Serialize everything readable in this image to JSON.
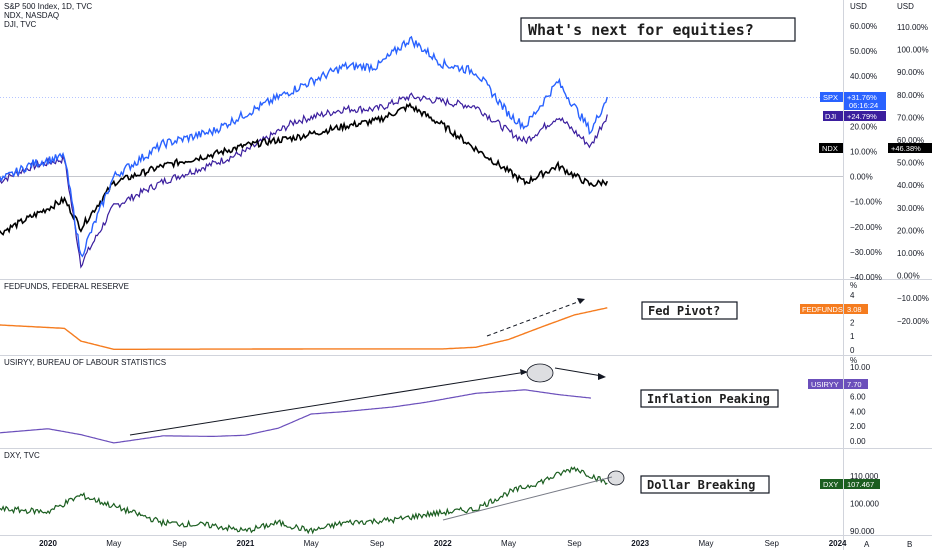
{
  "chart_data": [
    {
      "type": "line",
      "pane": "main",
      "legend": [
        "S&P 500 Index, 1D, TVC",
        "NDX, NASDAQ",
        "DJI, TVC"
      ],
      "currency": "USD",
      "title": "What's next for equities?",
      "ylabel_left": [
        "60.00%",
        "50.00%",
        "40.00%",
        "30.00%",
        "20.00%",
        "10.00%",
        "0.00%",
        "−10.00%",
        "−20.00%",
        "−30.00%",
        "−40.00%"
      ],
      "ylabel_right": [
        "110.00%",
        "100.00%",
        "90.00%",
        "80.00%",
        "70.00%",
        "60.00%",
        "50.00%",
        "40.00%",
        "30.00%",
        "20.00%",
        "10.00%",
        "0.00%",
        "−10.00%",
        "−20.00%"
      ],
      "x_ticks": [
        "2020",
        "May",
        "Sep",
        "2021",
        "May",
        "Sep",
        "2022",
        "May",
        "Sep",
        "2023",
        "May",
        "Sep",
        "2024"
      ],
      "series": [
        {
          "name": "SPX",
          "color": "#2962ff",
          "last_label": "+31.76%",
          "timer": "06:16:24",
          "x": [
            "2019-10",
            "2019-12",
            "2020-02",
            "2020-03",
            "2020-05",
            "2020-08",
            "2020-11",
            "2021-01",
            "2021-04",
            "2021-07",
            "2021-09",
            "2021-11",
            "2022-01",
            "2022-03",
            "2022-05",
            "2022-06",
            "2022-08",
            "2022-10",
            "2022-11"
          ],
          "values": [
            -2,
            5,
            8,
            -32,
            0,
            13,
            18,
            25,
            35,
            44,
            44,
            55,
            45,
            42,
            25,
            20,
            38,
            18,
            31.76
          ]
        },
        {
          "name": "DJI",
          "color": "#3b1e9e",
          "last_label": "+24.79%",
          "x": [
            "2019-10",
            "2019-12",
            "2020-02",
            "2020-03",
            "2020-05",
            "2020-08",
            "2020-11",
            "2021-01",
            "2021-04",
            "2021-07",
            "2021-09",
            "2021-11",
            "2022-01",
            "2022-03",
            "2022-05",
            "2022-06",
            "2022-08",
            "2022-10",
            "2022-11"
          ],
          "values": [
            -2,
            4,
            7,
            -35,
            -12,
            -2,
            5,
            10,
            22,
            27,
            27,
            32,
            30,
            28,
            18,
            14,
            24,
            12,
            24.79
          ]
        },
        {
          "name": "NDX",
          "color": "#000000",
          "last_label": "+46.38%",
          "x": [
            "2019-10",
            "2019-12",
            "2020-02",
            "2020-03",
            "2020-05",
            "2020-08",
            "2020-11",
            "2021-01",
            "2021-04",
            "2021-07",
            "2021-09",
            "2021-11",
            "2022-01",
            "2022-03",
            "2022-05",
            "2022-06",
            "2022-08",
            "2022-10",
            "2022-11"
          ],
          "values": [
            0,
            15,
            30,
            5,
            45,
            60,
            70,
            78,
            85,
            95,
            100,
            113,
            96,
            75,
            55,
            45,
            60,
            43,
            46.38
          ]
        }
      ]
    },
    {
      "type": "line",
      "pane": "fedfunds",
      "legend": "FEDFUNDS, FEDERAL RESERVE",
      "title": "Fed Pivot?",
      "unit": "%",
      "ylim": [
        0,
        4
      ],
      "yticks": [
        "4",
        "3",
        "2",
        "1",
        "0"
      ],
      "series": [
        {
          "name": "FEDFUNDS",
          "color": "#f57c1f",
          "last_label": "3.08",
          "x": [
            "2019-10",
            "2020-02",
            "2020-03",
            "2020-05",
            "2021-06",
            "2022-01",
            "2022-03",
            "2022-05",
            "2022-07",
            "2022-09",
            "2022-11"
          ],
          "values": [
            1.83,
            1.58,
            0.65,
            0.05,
            0.08,
            0.08,
            0.2,
            0.77,
            1.68,
            2.56,
            3.08
          ]
        }
      ]
    },
    {
      "type": "line",
      "pane": "usiryy",
      "legend": "USIRYY, BUREAU OF LABOUR STATISTICS",
      "title": "Inflation Peaking",
      "unit": "%",
      "ylim": [
        0,
        8
      ],
      "yticks": [
        "10.00",
        "8.00",
        "6.00",
        "4.00",
        "2.00",
        "0.00"
      ],
      "series": [
        {
          "name": "USIRYY",
          "color": "#6b4fbb",
          "last_label": "7.70",
          "x": [
            "2019-10",
            "2020-01",
            "2020-03",
            "2020-05",
            "2020-08",
            "2020-11",
            "2021-01",
            "2021-03",
            "2021-05",
            "2021-07",
            "2021-10",
            "2021-12",
            "2022-03",
            "2022-06",
            "2022-08",
            "2022-10"
          ],
          "values": [
            1.8,
            2.5,
            1.5,
            0.1,
            1.3,
            1.2,
            1.4,
            2.6,
            5.0,
            5.4,
            6.2,
            7.0,
            8.5,
            9.1,
            8.3,
            7.7
          ]
        }
      ]
    },
    {
      "type": "line",
      "pane": "dxy",
      "legend": "DXY, TVC",
      "title": "Dollar Breaking",
      "ylim": [
        88,
        116
      ],
      "yticks": [
        "110.000",
        "100.000",
        "90.000"
      ],
      "series": [
        {
          "name": "DXY",
          "color": "#1b5e20",
          "last_label": "107.467",
          "x": [
            "2019-10",
            "2020-01",
            "2020-03",
            "2020-05",
            "2020-08",
            "2020-11",
            "2021-01",
            "2021-03",
            "2021-05",
            "2021-07",
            "2021-10",
            "2021-12",
            "2022-03",
            "2022-05",
            "2022-07",
            "2022-09",
            "2022-11"
          ],
          "values": [
            98,
            97,
            103,
            99,
            93,
            92,
            90,
            93,
            90,
            93,
            94,
            96,
            98,
            104,
            108,
            113,
            107.467
          ]
        }
      ]
    }
  ],
  "annotations": {
    "equities": "What's next for equities?",
    "fed": "Fed Pivot?",
    "inflation": "Inflation Peaking",
    "dollar": "Dollar Breaking"
  },
  "legends": {
    "main_1": "S&P 500 Index, 1D, TVC",
    "main_2": "NDX, NASDAQ",
    "main_3": "DJI, TVC",
    "fedfunds": "FEDFUNDS, FEDERAL RESERVE",
    "usiryy": "USIRYY, BUREAU OF LABOUR STATISTICS",
    "dxy": "DXY, TVC"
  },
  "tags": {
    "spx_name": "SPX",
    "spx_value": "+31.76%",
    "spx_timer": "06:16:24",
    "dji_name": "DJI",
    "dji_value": "+24.79%",
    "ndx_name": "NDX",
    "ndx_value": "+46.38%",
    "fed_name": "FEDFUNDS",
    "fed_value": "3.08",
    "usiryy_name": "USIRYY",
    "usiryy_value": "7.70",
    "dxy_name": "DXY",
    "dxy_value": "107.467"
  },
  "bottom_buttons": [
    "A",
    "B"
  ],
  "axis_units": {
    "left": "USD",
    "right": "USD",
    "pct": "%"
  },
  "colors": {
    "spx": "#2962ff",
    "dji": "#3b1e9e",
    "ndx": "#000000",
    "fedfunds": "#f57c1f",
    "usiryy": "#6b4fbb",
    "dxy": "#1b5e20",
    "grid": "#d1d4dc"
  }
}
